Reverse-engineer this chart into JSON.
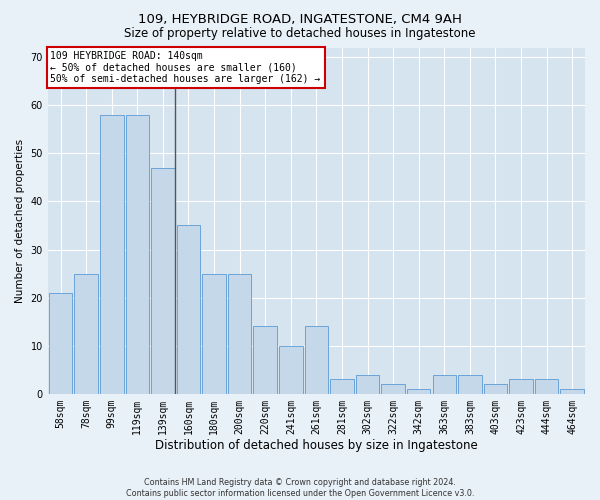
{
  "title1": "109, HEYBRIDGE ROAD, INGATESTONE, CM4 9AH",
  "title2": "Size of property relative to detached houses in Ingatestone",
  "xlabel": "Distribution of detached houses by size in Ingatestone",
  "ylabel": "Number of detached properties",
  "footnote": "Contains HM Land Registry data © Crown copyright and database right 2024.\nContains public sector information licensed under the Open Government Licence v3.0.",
  "categories": [
    "58sqm",
    "78sqm",
    "99sqm",
    "119sqm",
    "139sqm",
    "160sqm",
    "180sqm",
    "200sqm",
    "220sqm",
    "241sqm",
    "261sqm",
    "281sqm",
    "302sqm",
    "322sqm",
    "342sqm",
    "363sqm",
    "383sqm",
    "403sqm",
    "423sqm",
    "444sqm",
    "464sqm"
  ],
  "values": [
    21,
    25,
    58,
    58,
    47,
    35,
    25,
    25,
    14,
    10,
    14,
    3,
    4,
    2,
    1,
    4,
    4,
    2,
    3,
    3,
    1
  ],
  "bar_color": "#c5d8ea",
  "bar_edge_color": "#5b9bd5",
  "marker_text": "109 HEYBRIDGE ROAD: 140sqm",
  "annotation_line1": "← 50% of detached houses are smaller (160)",
  "annotation_line2": "50% of semi-detached houses are larger (162) →",
  "annotation_box_color": "#ffffff",
  "annotation_box_edge_color": "#cc0000",
  "ylim": [
    0,
    72
  ],
  "yticks": [
    0,
    10,
    20,
    30,
    40,
    50,
    60,
    70
  ],
  "background_color": "#e8f0f8",
  "plot_background": "#d6e4f0",
  "grid_color": "#ffffff",
  "title1_fontsize": 9.5,
  "title2_fontsize": 8.5,
  "xlabel_fontsize": 8.5,
  "ylabel_fontsize": 7.5,
  "tick_fontsize": 7,
  "footnote_fontsize": 5.8
}
